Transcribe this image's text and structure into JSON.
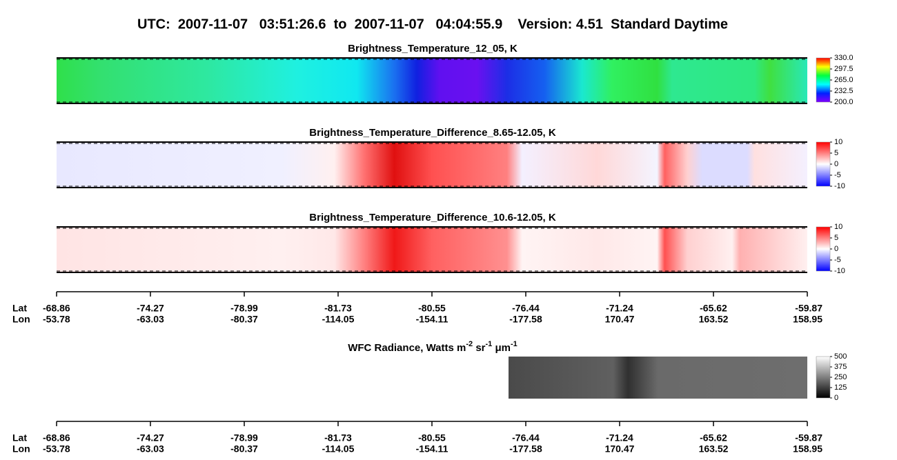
{
  "title": "UTC:  2007-11-07   03:51:26.6  to  2007-11-07   04:04:55.9    Version: 4.51  Standard Daytime",
  "panels": [
    {
      "title": "Brightness_Temperature_12_05, K",
      "colorscale": "rainbow",
      "clim": [
        200,
        330
      ],
      "ticks": [
        {
          "value": 330,
          "label": "330.0"
        },
        {
          "value": 297.5,
          "label": "297.5"
        },
        {
          "value": 265,
          "label": "265.0"
        },
        {
          "value": 232.5,
          "label": "232.5"
        },
        {
          "value": 200,
          "label": "200.0"
        }
      ]
    },
    {
      "title": "Brightness_Temperature_Difference_8.65-12.05, K",
      "colorscale": "bwr",
      "clim": [
        -10,
        10
      ],
      "ticks": [
        10,
        5,
        0,
        -5,
        -10
      ]
    },
    {
      "title": "Brightness_Temperature_Difference_10.6-12.05, K",
      "colorscale": "bwr",
      "clim": [
        -10,
        10
      ],
      "ticks": [
        10,
        5,
        0,
        -5,
        -10
      ]
    }
  ],
  "wfc": {
    "title_parts": [
      {
        "text": "WFC Radiance, Watts m"
      },
      {
        "text": "-2",
        "sup": true
      },
      {
        "text": " sr"
      },
      {
        "text": "-1",
        "sup": true
      },
      {
        "text": " μm"
      },
      {
        "text": "-1",
        "sup": true
      }
    ],
    "colorscale": "gray",
    "clim": [
      0,
      500
    ],
    "ticks": [
      500,
      375,
      250,
      125,
      0
    ]
  },
  "axis": {
    "lat_label": "Lat",
    "lon_label": "Lon",
    "lat": [
      -68.86,
      -74.27,
      -78.99,
      -81.73,
      -80.55,
      -76.44,
      -71.24,
      -65.62,
      -59.87
    ],
    "lon": [
      -53.78,
      -63.03,
      -80.37,
      -114.05,
      -154.11,
      -177.58,
      170.47,
      163.52,
      158.95
    ]
  }
}
